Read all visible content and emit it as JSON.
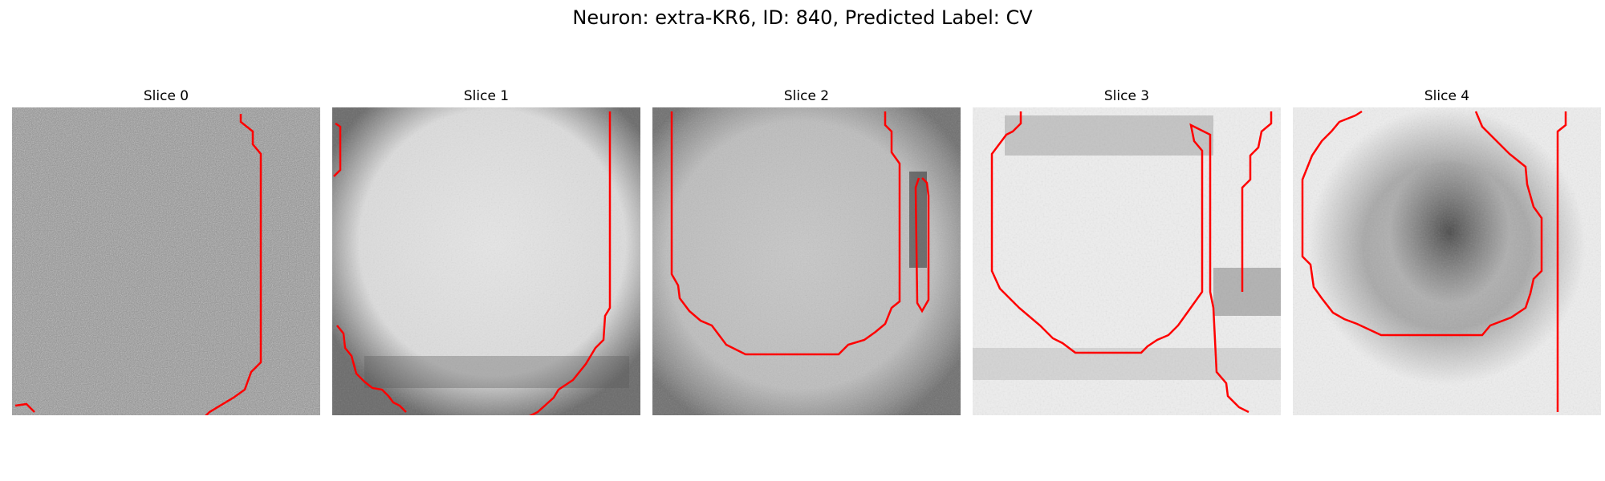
{
  "figure": {
    "title": "Neuron: extra-KR6, ID: 840, Predicted Label: CV"
  },
  "contour_color": "#ff0000",
  "slices": [
    {
      "title": "Slice 0"
    },
    {
      "title": "Slice 1"
    },
    {
      "title": "Slice 2"
    },
    {
      "title": "Slice 3"
    },
    {
      "title": "Slice 4"
    }
  ]
}
